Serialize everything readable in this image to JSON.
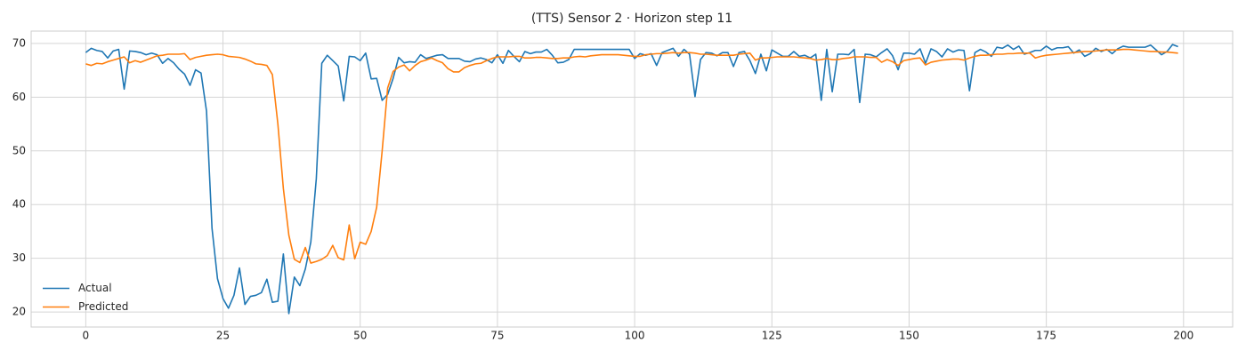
{
  "chart_data": {
    "type": "line",
    "title": "(TTS) Sensor 2 · Horizon step 11",
    "x": [
      0,
      1,
      2,
      3,
      4,
      5,
      6,
      7,
      8,
      9,
      10,
      11,
      12,
      13,
      14,
      15,
      16,
      17,
      18,
      19,
      20,
      21,
      22,
      23,
      24,
      25,
      26,
      27,
      28,
      29,
      30,
      31,
      32,
      33,
      34,
      35,
      36,
      37,
      38,
      39,
      40,
      41,
      42,
      43,
      44,
      45,
      46,
      47,
      48,
      49,
      50,
      51,
      52,
      53,
      54,
      55,
      56,
      57,
      58,
      59,
      60,
      61,
      62,
      63,
      64,
      65,
      66,
      67,
      68,
      69,
      70,
      71,
      72,
      73,
      74,
      75,
      76,
      77,
      78,
      79,
      80,
      81,
      82,
      83,
      84,
      85,
      86,
      87,
      88,
      89,
      90,
      91,
      92,
      93,
      94,
      95,
      96,
      97,
      98,
      99,
      100,
      101,
      102,
      103,
      104,
      105,
      106,
      107,
      108,
      109,
      110,
      111,
      112,
      113,
      114,
      115,
      116,
      117,
      118,
      119,
      120,
      121,
      122,
      123,
      124,
      125,
      126,
      127,
      128,
      129,
      130,
      131,
      132,
      133,
      134,
      135,
      136,
      137,
      138,
      139,
      140,
      141,
      142,
      143,
      144,
      145,
      146,
      147,
      148,
      149,
      150,
      151,
      152,
      153,
      154,
      155,
      156,
      157,
      158,
      159,
      160,
      161,
      162,
      163,
      164,
      165,
      166,
      167,
      168,
      169,
      170,
      171,
      172,
      173,
      174,
      175,
      176,
      177,
      178,
      179,
      180,
      181,
      182,
      183,
      184,
      185,
      186,
      187,
      188,
      189,
      190,
      191,
      192,
      193,
      194,
      195,
      196,
      197,
      198,
      199
    ],
    "series": [
      {
        "name": "Actual",
        "color": "#1f77b4",
        "values": [
          68.3,
          69.1,
          68.7,
          68.5,
          67.3,
          68.6,
          68.9,
          61.5,
          68.6,
          68.5,
          68.3,
          67.9,
          68.2,
          67.9,
          66.3,
          67.2,
          66.4,
          65.2,
          64.3,
          62.2,
          65.1,
          64.5,
          57.4,
          35.6,
          26.2,
          22.5,
          20.7,
          23.1,
          28.2,
          21.4,
          22.9,
          23.1,
          23.6,
          26.1,
          21.8,
          22.0,
          30.8,
          19.7,
          26.5,
          24.9,
          28.0,
          33.0,
          44.8,
          66.3,
          67.8,
          66.8,
          65.8,
          59.3,
          67.6,
          67.5,
          66.8,
          68.2,
          63.4,
          63.5,
          59.4,
          60.5,
          63.5,
          67.4,
          66.4,
          66.6,
          66.5,
          67.9,
          67.2,
          67.5,
          67.8,
          67.9,
          67.2,
          67.2,
          67.2,
          66.7,
          66.6,
          67.1,
          67.3,
          67.0,
          66.4,
          67.9,
          66.3,
          68.7,
          67.6,
          66.6,
          68.5,
          68.1,
          68.4,
          68.4,
          68.9,
          67.8,
          66.4,
          66.5,
          67.0,
          68.9,
          68.9,
          68.9,
          68.9,
          68.9,
          68.9,
          68.9,
          68.9,
          68.9,
          68.9,
          68.9,
          67.2,
          68.1,
          67.8,
          68.1,
          65.9,
          68.3,
          68.7,
          69.1,
          67.6,
          68.9,
          68.0,
          60.1,
          67.0,
          68.3,
          68.2,
          67.7,
          68.3,
          68.3,
          65.7,
          68.3,
          68.5,
          66.8,
          64.4,
          68.0,
          64.9,
          68.8,
          68.2,
          67.6,
          67.6,
          68.5,
          67.6,
          67.8,
          67.3,
          68.0,
          59.4,
          68.9,
          61.0,
          68.0,
          68.0,
          67.9,
          68.9,
          59.0,
          68.0,
          67.9,
          67.5,
          68.3,
          69.0,
          67.7,
          65.1,
          68.2,
          68.2,
          68.0,
          69.0,
          66.3,
          69.0,
          68.5,
          67.5,
          69.0,
          68.4,
          68.8,
          68.7,
          61.2,
          68.3,
          68.9,
          68.4,
          67.6,
          69.3,
          69.1,
          69.7,
          68.9,
          69.5,
          68.0,
          68.3,
          68.7,
          68.7,
          69.5,
          68.8,
          69.2,
          69.2,
          69.4,
          68.2,
          68.8,
          67.6,
          68.1,
          69.1,
          68.5,
          68.9,
          68.1,
          69.0,
          69.5,
          69.3,
          69.3,
          69.3,
          69.3,
          69.7,
          68.8,
          67.9,
          68.5,
          69.8,
          69.4
        ]
      },
      {
        "name": "Predicted",
        "color": "#ff7f0e",
        "values": [
          66.2,
          65.9,
          66.3,
          66.2,
          66.6,
          66.9,
          67.2,
          67.5,
          66.4,
          66.8,
          66.5,
          66.9,
          67.3,
          67.7,
          67.8,
          68.0,
          68.0,
          68.0,
          68.1,
          67.0,
          67.4,
          67.6,
          67.8,
          67.9,
          68.0,
          67.9,
          67.6,
          67.5,
          67.4,
          67.1,
          66.7,
          66.2,
          66.1,
          65.9,
          64.2,
          55.0,
          43.0,
          34.3,
          29.8,
          29.2,
          32.0,
          29.1,
          29.4,
          29.8,
          30.5,
          32.4,
          30.1,
          29.7,
          36.2,
          29.9,
          33.0,
          32.6,
          35.0,
          39.5,
          50.0,
          61.7,
          64.8,
          65.6,
          66.0,
          64.9,
          65.9,
          66.6,
          66.9,
          67.3,
          66.8,
          66.4,
          65.3,
          64.7,
          64.7,
          65.5,
          65.9,
          66.2,
          66.3,
          66.8,
          67.2,
          67.5,
          67.5,
          67.5,
          67.6,
          67.6,
          67.3,
          67.3,
          67.4,
          67.4,
          67.3,
          67.2,
          67.2,
          67.3,
          67.3,
          67.5,
          67.6,
          67.5,
          67.7,
          67.8,
          67.9,
          67.9,
          67.9,
          67.9,
          67.8,
          67.7,
          67.6,
          67.6,
          67.9,
          68.0,
          68.1,
          68.1,
          68.2,
          68.3,
          68.2,
          68.3,
          68.3,
          68.2,
          68.0,
          68.0,
          67.9,
          67.8,
          67.8,
          67.8,
          67.8,
          68.0,
          68.1,
          68.2,
          66.9,
          67.3,
          67.3,
          67.4,
          67.5,
          67.5,
          67.5,
          67.5,
          67.4,
          67.3,
          67.2,
          66.9,
          67.0,
          67.2,
          67.0,
          67.0,
          67.2,
          67.3,
          67.5,
          67.5,
          67.5,
          67.4,
          67.4,
          66.5,
          67.0,
          66.6,
          65.9,
          66.8,
          67.0,
          67.2,
          67.3,
          66.0,
          66.5,
          66.7,
          66.9,
          67.0,
          67.1,
          67.1,
          66.9,
          67.3,
          67.6,
          67.8,
          67.8,
          67.9,
          68.0,
          68.0,
          68.1,
          68.1,
          68.2,
          68.2,
          68.2,
          67.3,
          67.6,
          67.8,
          67.9,
          68.0,
          68.1,
          68.2,
          68.3,
          68.4,
          68.5,
          68.5,
          68.6,
          68.7,
          68.8,
          68.8,
          68.8,
          68.9,
          68.9,
          68.8,
          68.7,
          68.6,
          68.5,
          68.5,
          68.4,
          68.4,
          68.3,
          68.2
        ]
      }
    ],
    "xlim": [
      -9.95,
      208.95
    ],
    "ylim": [
      17.2,
      72.3
    ],
    "xticks": [
      0,
      25,
      50,
      75,
      100,
      125,
      150,
      175,
      200
    ],
    "yticks": [
      20,
      30,
      40,
      50,
      60,
      70
    ],
    "grid": true,
    "legend": "lower left"
  }
}
